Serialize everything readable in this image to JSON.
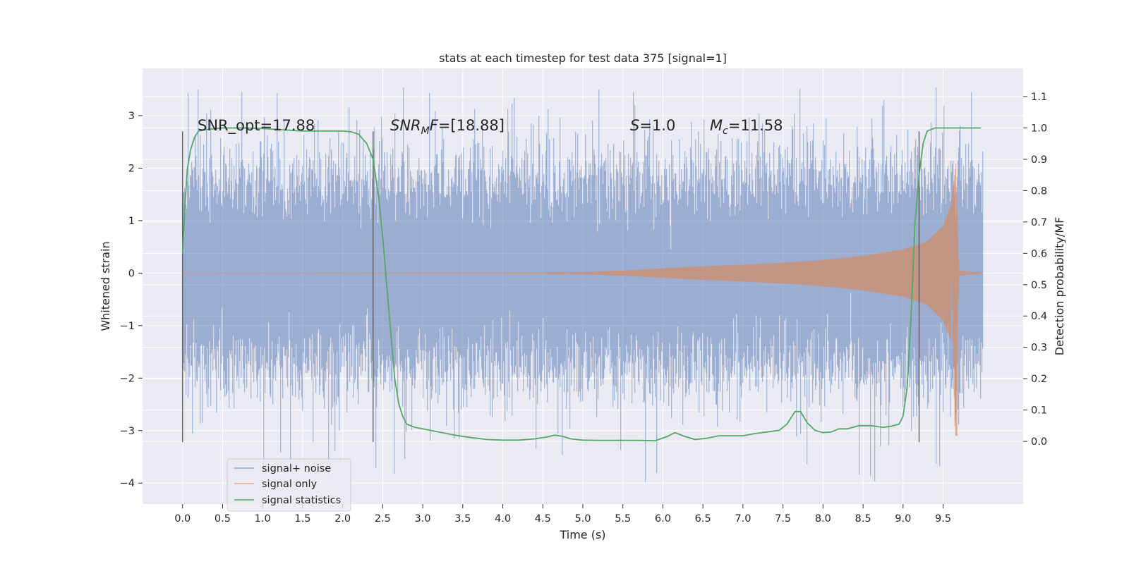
{
  "chart_data": {
    "type": "line",
    "title": "stats at each timestep for test data 375 [signal=1]",
    "xlabel": "Time (s)",
    "ylabel": "Whitened strain",
    "ylabel_right": "Detection probability/MF",
    "xlim": [
      -0.5,
      10.5
    ],
    "ylim": [
      -4.4,
      3.9
    ],
    "ylim_right": [
      -0.2,
      1.19
    ],
    "x_ticks": [
      0.0,
      0.5,
      1.0,
      1.5,
      2.0,
      2.5,
      3.0,
      3.5,
      4.0,
      4.5,
      5.0,
      5.5,
      6.0,
      6.5,
      7.0,
      7.5,
      8.0,
      8.5,
      9.0,
      9.5
    ],
    "x_tick_labels": [
      "0.0",
      "0.5",
      "1.0",
      "1.5",
      "2.0",
      "2.5",
      "3.0",
      "3.5",
      "4.0",
      "4.5",
      "5.0",
      "5.5",
      "6.0",
      "6.5",
      "7.0",
      "7.5",
      "8.0",
      "8.5",
      "9.0",
      "9.5"
    ],
    "y_ticks": [
      -4,
      -3,
      -2,
      -1,
      0,
      1,
      2,
      3
    ],
    "y_tick_labels": [
      "−4",
      "−3",
      "−2",
      "−1",
      "0",
      "1",
      "2",
      "3"
    ],
    "y_right_ticks": [
      0.0,
      0.1,
      0.2,
      0.3,
      0.4,
      0.5,
      0.6,
      0.7,
      0.8,
      0.9,
      1.0,
      1.1
    ],
    "y_right_tick_labels": [
      "0.0",
      "0.1",
      "0.2",
      "0.3",
      "0.4",
      "0.5",
      "0.6",
      "0.7",
      "0.8",
      "0.9",
      "1.0",
      "1.1"
    ],
    "grid": true,
    "legend_position": "lower-left",
    "colors": {
      "background": "#eaeaf2",
      "grid": "#ffffff",
      "signal_noise": "#4c72b0",
      "signal_only": "#dd8452",
      "statistics": "#55a868",
      "vlines": "#555555"
    },
    "series": [
      {
        "name": "signal+ noise",
        "axis": "left",
        "x_range": [
          0.0,
          10.0
        ],
        "envelope_typical": [
          -1.8,
          1.8
        ],
        "envelope_extreme": [
          -4.05,
          3.55
        ]
      },
      {
        "name": "signal only",
        "axis": "left",
        "x_range": [
          0.0,
          10.0
        ],
        "amplitude_envelope": {
          "x": [
            0.0,
            4.5,
            5.0,
            5.5,
            6.0,
            6.5,
            7.0,
            7.5,
            8.0,
            8.5,
            9.0,
            9.3,
            9.5,
            9.6,
            9.66,
            9.7,
            10.0
          ],
          "y": [
            0.0,
            0.005,
            0.02,
            0.05,
            0.09,
            0.13,
            0.16,
            0.2,
            0.25,
            0.33,
            0.45,
            0.6,
            0.9,
            1.3,
            2.1,
            0.05,
            0.0
          ]
        }
      },
      {
        "name": "signal statistics",
        "axis": "right",
        "x": [
          0.0,
          0.03,
          0.06,
          0.1,
          0.15,
          0.2,
          0.3,
          0.5,
          0.8,
          1.0,
          1.2,
          1.5,
          1.8,
          2.0,
          2.1,
          2.2,
          2.3,
          2.38,
          2.45,
          2.5,
          2.55,
          2.6,
          2.65,
          2.7,
          2.75,
          2.8,
          2.9,
          3.0,
          3.2,
          3.4,
          3.6,
          3.8,
          4.0,
          4.2,
          4.4,
          4.55,
          4.65,
          4.75,
          4.85,
          5.0,
          5.2,
          5.5,
          5.7,
          5.9,
          6.05,
          6.15,
          6.25,
          6.4,
          6.55,
          6.7,
          6.85,
          7.0,
          7.15,
          7.3,
          7.45,
          7.55,
          7.65,
          7.72,
          7.8,
          7.9,
          8.0,
          8.1,
          8.2,
          8.3,
          8.45,
          8.6,
          8.75,
          8.85,
          8.95,
          9.0,
          9.05,
          9.1,
          9.15,
          9.2,
          9.25,
          9.3,
          9.4,
          9.6,
          9.8,
          9.97
        ],
        "y": [
          0.6,
          0.75,
          0.87,
          0.93,
          0.97,
          0.99,
          0.995,
          1.0,
          1.0,
          0.998,
          0.995,
          0.99,
          0.99,
          0.99,
          0.988,
          0.98,
          0.95,
          0.9,
          0.78,
          0.65,
          0.5,
          0.35,
          0.2,
          0.12,
          0.08,
          0.055,
          0.045,
          0.04,
          0.03,
          0.02,
          0.012,
          0.006,
          0.004,
          0.004,
          0.008,
          0.014,
          0.02,
          0.016,
          0.008,
          0.004,
          0.003,
          0.003,
          0.003,
          0.002,
          0.015,
          0.028,
          0.018,
          0.006,
          0.01,
          0.018,
          0.018,
          0.018,
          0.025,
          0.03,
          0.035,
          0.055,
          0.095,
          0.095,
          0.06,
          0.035,
          0.028,
          0.03,
          0.04,
          0.04,
          0.05,
          0.05,
          0.045,
          0.048,
          0.055,
          0.08,
          0.17,
          0.4,
          0.7,
          0.85,
          0.95,
          0.99,
          1.0,
          1.0,
          1.0,
          1.0
        ]
      }
    ],
    "vertical_lines": [
      {
        "x": 0.0,
        "ylim": [
          -3.22,
          2.7
        ]
      },
      {
        "x": 2.38,
        "ylim": [
          -3.22,
          2.7
        ]
      },
      {
        "x": 9.2,
        "ylim": [
          -3.22,
          2.7
        ]
      }
    ],
    "annotations": {
      "snr_opt": "SNR_opt=17.88",
      "snr_mf_main": "SNR",
      "snr_mf_sub": "M",
      "snr_mf_tail": "F",
      "snr_mf_value": "=[18.88]",
      "s_main": "S",
      "s_value": "=1.0",
      "mc_main": "M",
      "mc_sub": "c",
      "mc_value": "=11.58"
    }
  }
}
